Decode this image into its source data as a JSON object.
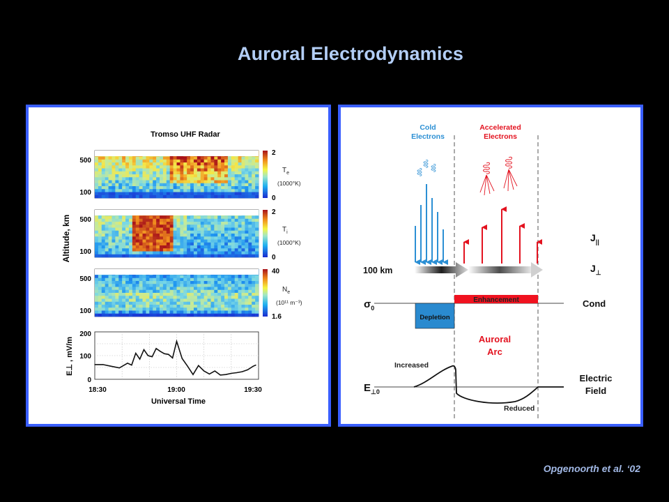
{
  "slide": {
    "title": "Auroral Electrodynamics",
    "citation": "Opgenoorth et al. ‘02"
  },
  "radar_figure": {
    "title": "Tromso UHF Radar",
    "y_axis_label": "Altitude, km",
    "x_axis_label": "Universal Time",
    "x_ticks": [
      "18:30",
      "19:00",
      "19:30"
    ],
    "panels": [
      {
        "quantity": "Te",
        "unit": "(1000°K)",
        "altitude_ticks": [
          "500",
          "100"
        ],
        "colorbar_max": "2",
        "colorbar_min": "0",
        "intensity": "Te"
      },
      {
        "quantity": "Ti",
        "unit": "(1000°K)",
        "altitude_ticks": [
          "500",
          "100"
        ],
        "colorbar_max": "2",
        "colorbar_min": "0",
        "intensity": "Ti"
      },
      {
        "quantity": "Ne",
        "unit": "(10¹¹ m⁻³)",
        "altitude_ticks": [
          "500",
          "100"
        ],
        "colorbar_max": "40",
        "colorbar_min": "1.6",
        "intensity": "Ne"
      }
    ],
    "efield_axis_label": "E⊥ , mV/m",
    "efield_y_ticks": [
      "200",
      "100",
      "0"
    ]
  },
  "chart_data": {
    "type": "line",
    "title": "",
    "xlabel": "Universal Time",
    "ylabel": "E⊥ , mV/m",
    "x_range": [
      "18:30",
      "19:30"
    ],
    "ylim": [
      0,
      200
    ],
    "series": [
      {
        "x_minutes_after_1830": [
          0,
          3,
          6,
          9,
          12,
          13.5,
          15,
          16.5,
          18,
          19.5,
          21,
          22.5,
          24,
          25.5,
          27,
          28.5,
          30,
          32,
          34,
          36,
          38,
          40,
          42,
          44,
          46,
          48,
          50,
          52,
          54,
          56,
          58,
          59
        ],
        "values": [
          62,
          62,
          55,
          48,
          68,
          60,
          110,
          85,
          125,
          100,
          95,
          130,
          118,
          108,
          105,
          90,
          160,
          88,
          55,
          20,
          58,
          35,
          22,
          35,
          18,
          20,
          25,
          28,
          32,
          40,
          55,
          60
        ]
      }
    ],
    "grid": true
  },
  "arc_diagram": {
    "cold_electrons_label": [
      "Cold",
      "Electrons"
    ],
    "accelerated_electrons_label": [
      "Accelerated",
      "Electrons"
    ],
    "altitude_label": "100 km",
    "j_parallel_label": "J",
    "j_parallel_sub": "||",
    "j_perp_label": "J",
    "j_perp_sub": "⊥",
    "sigma_label": "σ",
    "sigma_sub": "0",
    "cond_label": "Cond",
    "enhancement_label": "Enhancement",
    "depletion_label": "Depletion",
    "auroral_arc_label": [
      "Auroral",
      "Arc"
    ],
    "increased_label": "Increased",
    "reduced_label": "Reduced",
    "efield_symbol": "E",
    "efield_sub": "⊥0",
    "electric_field_label": [
      "Electric",
      "Field"
    ],
    "colors": {
      "cold": "#2b8fd4",
      "accelerated": "#e3121f",
      "enhancement_bar": "#f0121f",
      "depletion_bar": "#2a8acf",
      "panel_border": "#3a5fff",
      "title": "#b3cef6",
      "citation": "#a2b9e6"
    }
  }
}
